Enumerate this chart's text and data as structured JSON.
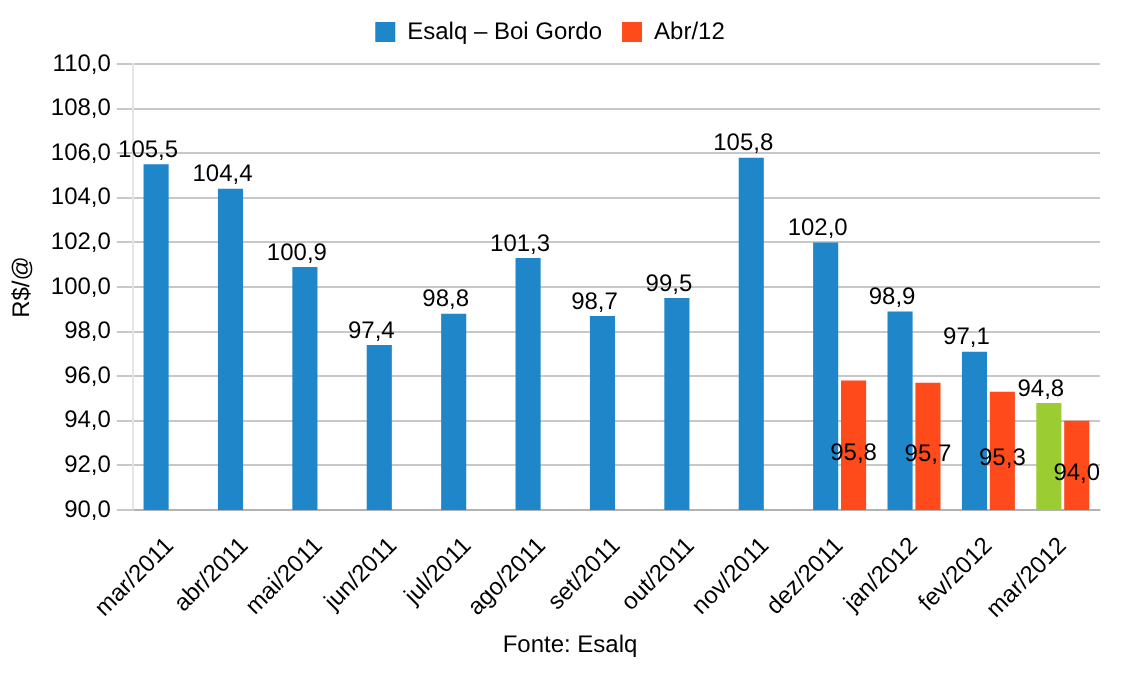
{
  "chart_data": {
    "type": "bar",
    "ylabel": "R$/@",
    "categories": [
      "mar/2011",
      "abr/2011",
      "mai/2011",
      "jun/2011",
      "jul/2011",
      "ago/2011",
      "set/2011",
      "out/2011",
      "nov/2011",
      "dez/2011",
      "jan/2012",
      "fev/2012",
      "mar/2012"
    ],
    "series": [
      {
        "name": "Esalq – Boi Gordo",
        "color": "#1f87c9",
        "colors": [
          "#1f87c9",
          "#1f87c9",
          "#1f87c9",
          "#1f87c9",
          "#1f87c9",
          "#1f87c9",
          "#1f87c9",
          "#1f87c9",
          "#1f87c9",
          "#1f87c9",
          "#1f87c9",
          "#1f87c9",
          "#9bcc32"
        ],
        "values": [
          105.5,
          104.4,
          100.9,
          97.4,
          98.8,
          101.3,
          98.7,
          99.5,
          105.8,
          102.0,
          98.9,
          97.1,
          94.8
        ],
        "value_labels": [
          "105,5",
          "104,4",
          "100,9",
          "97,4",
          "98,8",
          "101,3",
          "98,7",
          "99,5",
          "105,8",
          "102,0",
          "98,9",
          "97,1",
          "94,8"
        ]
      },
      {
        "name": "Abr/12",
        "color": "#ff4a1c",
        "values": [
          null,
          null,
          null,
          null,
          null,
          null,
          null,
          null,
          null,
          95.8,
          95.7,
          95.3,
          94.0
        ],
        "value_labels": [
          null,
          null,
          null,
          null,
          null,
          null,
          null,
          null,
          null,
          "95,8",
          "95,7",
          "95,3",
          "94,0"
        ]
      }
    ],
    "ylim": [
      90,
      110
    ],
    "yticks": [
      {
        "value": 90,
        "label": "90,0"
      },
      {
        "value": 92,
        "label": "92,0"
      },
      {
        "value": 94,
        "label": "94,0"
      },
      {
        "value": 96,
        "label": "96,0"
      },
      {
        "value": 98,
        "label": "98,0"
      },
      {
        "value": 100,
        "label": "100,0"
      },
      {
        "value": 102,
        "label": "102,0"
      },
      {
        "value": 104,
        "label": "104,0"
      },
      {
        "value": 106,
        "label": "106,0"
      },
      {
        "value": 108,
        "label": "108,0"
      },
      {
        "value": 110,
        "label": "110,0"
      }
    ],
    "grid": "y",
    "legend": "top",
    "annotations": [
      "Fonte: Esalq"
    ]
  }
}
